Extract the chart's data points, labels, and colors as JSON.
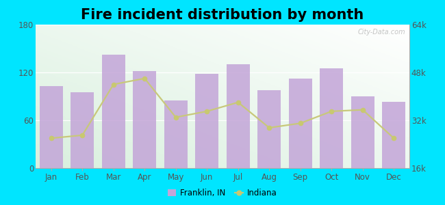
{
  "title": "Fire incident distribution by month",
  "months": [
    "Jan",
    "Feb",
    "Mar",
    "Apr",
    "May",
    "Jun",
    "Jul",
    "Aug",
    "Sep",
    "Oct",
    "Nov",
    "Dec"
  ],
  "bar_values": [
    103,
    95,
    142,
    122,
    85,
    118,
    130,
    98,
    112,
    125,
    90,
    83
  ],
  "line_values": [
    26000,
    27000,
    44000,
    46000,
    33000,
    35000,
    38000,
    29500,
    31000,
    35000,
    35500,
    26000
  ],
  "bar_color": "#c3a5d8",
  "line_color": "#c8c87a",
  "marker_color": "#c8c870",
  "outer_bg": "#00e5ff",
  "ylim_left": [
    0,
    180
  ],
  "ylim_right": [
    16000,
    64000
  ],
  "yticks_left": [
    0,
    60,
    120,
    180
  ],
  "yticks_right": [
    16000,
    32000,
    48000,
    64000
  ],
  "ytick_labels_right": [
    "16k",
    "32k",
    "48k",
    "64k"
  ],
  "title_fontsize": 15,
  "watermark": "City-Data.com"
}
